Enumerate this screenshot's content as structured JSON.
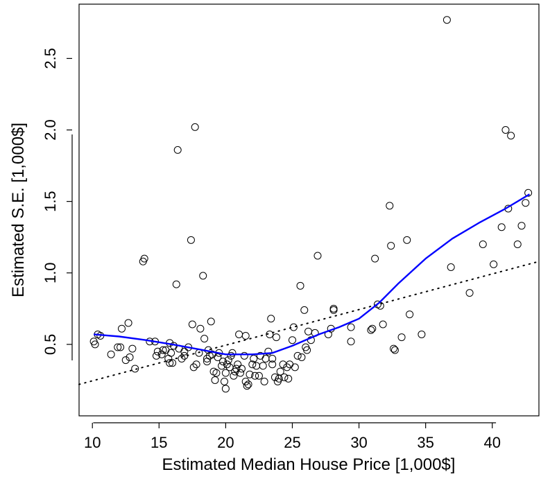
{
  "chart_data": {
    "type": "scatter",
    "title": "",
    "xlabel": "Estimated Median House Price [1,000$]",
    "ylabel": "Estimated S.E. [1,000$]",
    "xlim": [
      9.0,
      43.5
    ],
    "ylim": [
      0.0,
      2.88
    ],
    "x_ticks": [
      10,
      15,
      20,
      25,
      30,
      35,
      40
    ],
    "x_tick_labels": [
      "10",
      "15",
      "20",
      "25",
      "30",
      "35",
      "40"
    ],
    "y_ticks": [
      0.5,
      1.0,
      1.5,
      2.0,
      2.5
    ],
    "y_tick_labels": [
      "0.5",
      "1.0",
      "1.5",
      "2.0",
      "2.5"
    ],
    "grid": false,
    "points": [
      [
        10.1,
        0.52
      ],
      [
        10.2,
        0.5
      ],
      [
        10.4,
        0.57
      ],
      [
        10.6,
        0.56
      ],
      [
        11.4,
        0.43
      ],
      [
        11.9,
        0.48
      ],
      [
        12.1,
        0.48
      ],
      [
        12.2,
        0.61
      ],
      [
        12.5,
        0.39
      ],
      [
        12.8,
        0.41
      ],
      [
        12.7,
        0.65
      ],
      [
        13.0,
        0.47
      ],
      [
        13.2,
        0.33
      ],
      [
        13.8,
        1.08
      ],
      [
        13.9,
        1.1
      ],
      [
        14.3,
        0.52
      ],
      [
        14.7,
        0.52
      ],
      [
        14.8,
        0.42
      ],
      [
        14.9,
        0.45
      ],
      [
        15.2,
        0.43
      ],
      [
        15.3,
        0.46
      ],
      [
        15.5,
        0.46
      ],
      [
        15.7,
        0.4
      ],
      [
        15.8,
        0.37
      ],
      [
        15.8,
        0.51
      ],
      [
        15.9,
        0.44
      ],
      [
        16.0,
        0.37
      ],
      [
        16.1,
        0.49
      ],
      [
        16.3,
        0.92
      ],
      [
        16.4,
        1.86
      ],
      [
        16.5,
        0.47
      ],
      [
        16.7,
        0.4
      ],
      [
        16.9,
        0.45
      ],
      [
        16.9,
        0.42
      ],
      [
        17.2,
        0.48
      ],
      [
        17.4,
        1.23
      ],
      [
        17.5,
        0.64
      ],
      [
        17.6,
        0.34
      ],
      [
        17.7,
        2.02
      ],
      [
        17.8,
        0.36
      ],
      [
        18.0,
        0.44
      ],
      [
        18.1,
        0.61
      ],
      [
        18.3,
        0.98
      ],
      [
        18.4,
        0.54
      ],
      [
        18.6,
        0.38
      ],
      [
        18.6,
        0.4
      ],
      [
        18.7,
        0.46
      ],
      [
        18.8,
        0.42
      ],
      [
        18.9,
        0.66
      ],
      [
        19.0,
        0.43
      ],
      [
        19.1,
        0.31
      ],
      [
        19.2,
        0.25
      ],
      [
        19.3,
        0.3
      ],
      [
        19.4,
        0.41
      ],
      [
        19.5,
        0.44
      ],
      [
        19.7,
        0.35
      ],
      [
        19.8,
        0.38
      ],
      [
        19.9,
        0.24
      ],
      [
        20.0,
        0.19
      ],
      [
        20.0,
        0.3
      ],
      [
        20.1,
        0.36
      ],
      [
        20.2,
        0.39
      ],
      [
        20.3,
        0.34
      ],
      [
        20.4,
        0.42
      ],
      [
        20.5,
        0.44
      ],
      [
        20.6,
        0.28
      ],
      [
        20.7,
        0.31
      ],
      [
        20.8,
        0.33
      ],
      [
        20.9,
        0.36
      ],
      [
        21.0,
        0.57
      ],
      [
        21.1,
        0.3
      ],
      [
        21.2,
        0.33
      ],
      [
        21.4,
        0.42
      ],
      [
        21.5,
        0.56
      ],
      [
        21.5,
        0.24
      ],
      [
        21.6,
        0.21
      ],
      [
        21.7,
        0.22
      ],
      [
        21.8,
        0.29
      ],
      [
        22.0,
        0.36
      ],
      [
        22.1,
        0.4
      ],
      [
        22.2,
        0.28
      ],
      [
        22.3,
        0.35
      ],
      [
        22.5,
        0.28
      ],
      [
        22.6,
        0.42
      ],
      [
        22.8,
        0.35
      ],
      [
        22.9,
        0.24
      ],
      [
        23.0,
        0.4
      ],
      [
        23.2,
        0.45
      ],
      [
        23.3,
        0.57
      ],
      [
        23.4,
        0.68
      ],
      [
        23.5,
        0.4
      ],
      [
        23.5,
        0.36
      ],
      [
        23.7,
        0.27
      ],
      [
        23.8,
        0.55
      ],
      [
        23.9,
        0.24
      ],
      [
        24.0,
        0.26
      ],
      [
        24.1,
        0.31
      ],
      [
        24.3,
        0.36
      ],
      [
        24.4,
        0.27
      ],
      [
        24.6,
        0.34
      ],
      [
        24.7,
        0.26
      ],
      [
        24.8,
        0.36
      ],
      [
        25.0,
        0.53
      ],
      [
        25.1,
        0.62
      ],
      [
        25.2,
        0.34
      ],
      [
        25.4,
        0.42
      ],
      [
        25.6,
        0.91
      ],
      [
        25.7,
        0.41
      ],
      [
        25.9,
        0.74
      ],
      [
        26.0,
        0.48
      ],
      [
        26.1,
        0.46
      ],
      [
        26.2,
        0.59
      ],
      [
        26.4,
        0.53
      ],
      [
        26.7,
        0.58
      ],
      [
        26.9,
        1.12
      ],
      [
        27.7,
        0.57
      ],
      [
        27.9,
        0.61
      ],
      [
        28.1,
        0.75
      ],
      [
        28.1,
        0.74
      ],
      [
        29.4,
        0.62
      ],
      [
        29.4,
        0.52
      ],
      [
        30.9,
        0.6
      ],
      [
        31.0,
        0.61
      ],
      [
        31.2,
        1.1
      ],
      [
        31.4,
        0.78
      ],
      [
        31.6,
        0.77
      ],
      [
        31.8,
        0.64
      ],
      [
        32.3,
        1.47
      ],
      [
        32.4,
        1.19
      ],
      [
        32.6,
        0.47
      ],
      [
        32.7,
        0.46
      ],
      [
        33.2,
        0.55
      ],
      [
        33.6,
        1.23
      ],
      [
        33.8,
        0.71
      ],
      [
        34.7,
        0.57
      ],
      [
        36.6,
        2.77
      ],
      [
        36.9,
        1.04
      ],
      [
        38.3,
        0.86
      ],
      [
        39.3,
        1.2
      ],
      [
        40.1,
        1.06
      ],
      [
        40.7,
        1.32
      ],
      [
        41.0,
        2.0
      ],
      [
        41.2,
        1.45
      ],
      [
        41.4,
        1.96
      ],
      [
        41.9,
        1.2
      ],
      [
        42.2,
        1.33
      ],
      [
        42.5,
        1.49
      ],
      [
        42.7,
        1.56
      ]
    ],
    "smooth_line": {
      "color": "#0000ff",
      "points": [
        [
          10.1,
          0.57
        ],
        [
          12,
          0.555
        ],
        [
          14,
          0.53
        ],
        [
          16,
          0.5
        ],
        [
          18,
          0.465
        ],
        [
          20,
          0.43
        ],
        [
          22,
          0.43
        ],
        [
          23.5,
          0.44
        ],
        [
          25,
          0.49
        ],
        [
          27,
          0.57
        ],
        [
          28.5,
          0.62
        ],
        [
          30,
          0.68
        ],
        [
          31.5,
          0.79
        ],
        [
          33,
          0.93
        ],
        [
          35,
          1.1
        ],
        [
          37,
          1.24
        ],
        [
          39,
          1.35
        ],
        [
          41,
          1.45
        ],
        [
          42.8,
          1.55
        ]
      ]
    },
    "dotted_line": {
      "color": "#000000",
      "points": [
        [
          9.0,
          0.22
        ],
        [
          43.5,
          1.08
        ]
      ]
    }
  }
}
